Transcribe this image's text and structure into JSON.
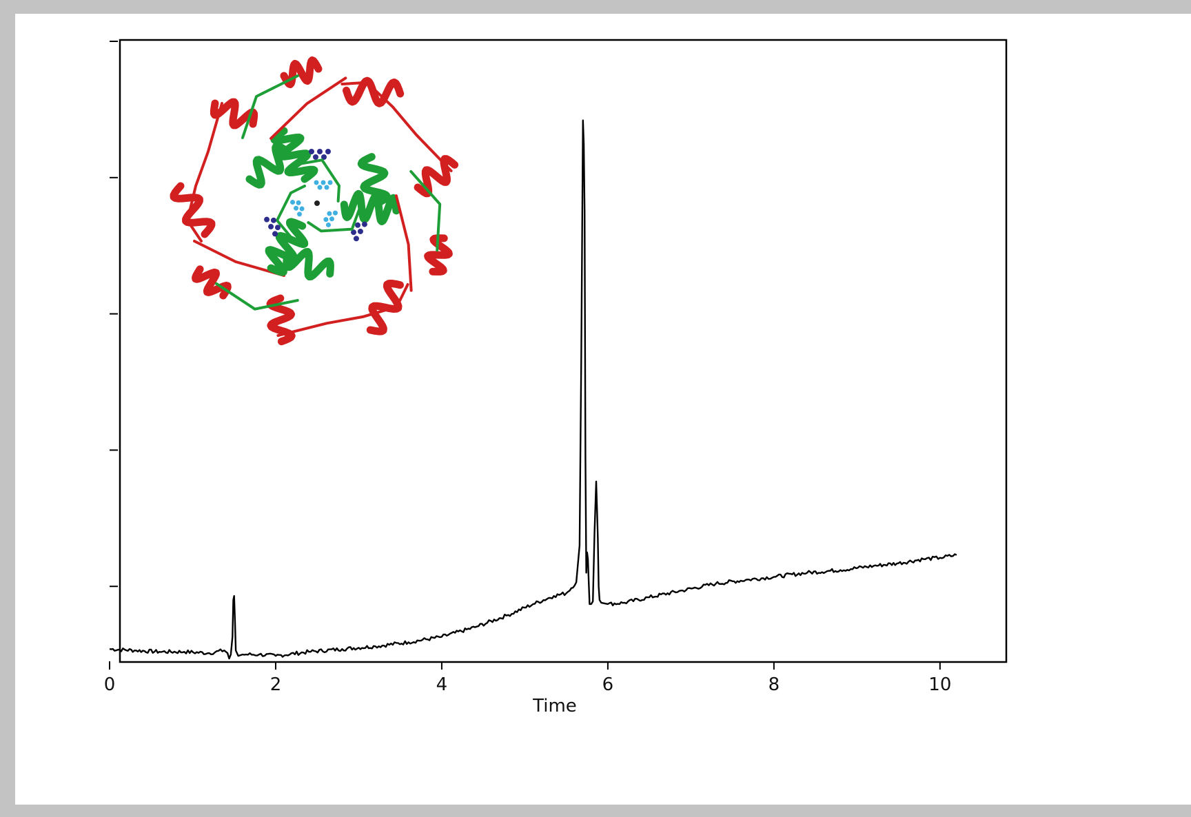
{
  "chart_data": {
    "type": "line",
    "title": "",
    "xlabel": "Time",
    "ylabel": "",
    "xlim": [
      0,
      10.35
    ],
    "ylim": [
      0,
      4.55
    ],
    "x_ticks": [
      0,
      2,
      4,
      6,
      8,
      10
    ],
    "x_tick_labels": [
      "0",
      "2",
      "4",
      "6",
      "8",
      "10"
    ],
    "y_ticks": [
      0.55,
      1.55,
      2.55,
      3.55,
      4.55
    ],
    "y_tick_labels": [
      "",
      "",
      "",
      "",
      ""
    ],
    "grid": false,
    "legend": "none",
    "line_color": "#000000",
    "series": [
      {
        "x": [
          0.0,
          0.3,
          0.6,
          0.9,
          1.2,
          1.38,
          1.42,
          1.44,
          1.46,
          1.48,
          1.49,
          1.5,
          1.51,
          1.52,
          1.55,
          1.6,
          1.8,
          2.0,
          2.4,
          2.8,
          3.2,
          3.6,
          4.0,
          4.4,
          4.8,
          5.1,
          5.35,
          5.5,
          5.62,
          5.66,
          5.68,
          5.7,
          5.71,
          5.72,
          5.73,
          5.74,
          5.75,
          5.76,
          5.77,
          5.78,
          5.8,
          5.82,
          5.84,
          5.86,
          5.87,
          5.88,
          5.89,
          5.9,
          5.92,
          6.0,
          6.2,
          6.5,
          6.9,
          7.3,
          7.7,
          8.0,
          8.4,
          8.8,
          9.2,
          9.5,
          9.8,
          10.0,
          10.2
        ],
        "y": [
          0.09,
          0.08,
          0.07,
          0.07,
          0.06,
          0.08,
          0.06,
          0.02,
          0.05,
          0.18,
          0.45,
          0.48,
          0.3,
          0.08,
          0.04,
          0.05,
          0.05,
          0.04,
          0.07,
          0.09,
          0.11,
          0.14,
          0.18,
          0.25,
          0.34,
          0.42,
          0.48,
          0.5,
          0.58,
          0.85,
          2.2,
          3.97,
          3.8,
          3.3,
          1.5,
          0.65,
          0.8,
          0.75,
          0.58,
          0.42,
          0.42,
          0.44,
          0.95,
          1.32,
          1.12,
          0.9,
          0.55,
          0.45,
          0.43,
          0.42,
          0.43,
          0.47,
          0.52,
          0.57,
          0.6,
          0.62,
          0.65,
          0.67,
          0.7,
          0.72,
          0.75,
          0.76,
          0.78
        ]
      }
    ]
  },
  "inset": {
    "label": "protein-trimer-ribbon",
    "colors": {
      "helix": "#1e9e36",
      "strand": "#d21f1f",
      "loop_dark": "#2d2d8c",
      "loop_light": "#3fb0e0"
    }
  }
}
